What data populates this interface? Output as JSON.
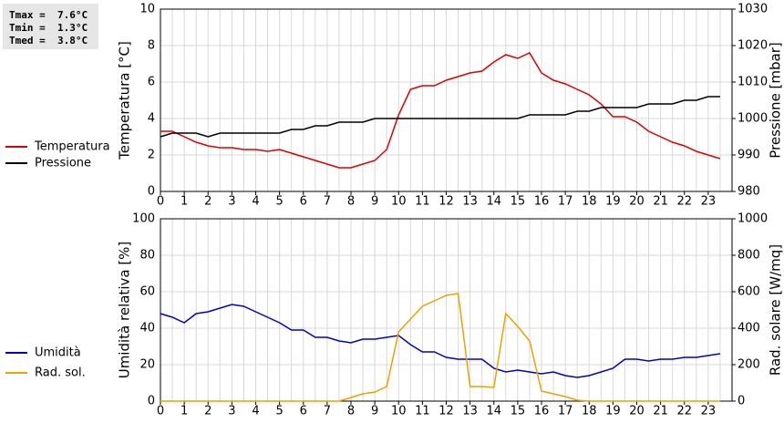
{
  "chart_data": [
    {
      "type": "line",
      "annotations": [
        "Tmax =  7.6°C",
        "Tmin =  1.3°C",
        "Tmed =  3.8°C"
      ],
      "ylabel": "Temperatura [°C]",
      "y2label": "Pressione [mbar]",
      "x": [
        0,
        0.5,
        1,
        1.5,
        2,
        2.5,
        3,
        3.5,
        4,
        4.5,
        5,
        5.5,
        6,
        6.5,
        7,
        7.5,
        8,
        8.5,
        9,
        9.5,
        10,
        10.5,
        11,
        11.5,
        12,
        12.5,
        13,
        13.5,
        14,
        14.5,
        15,
        15.5,
        16,
        16.5,
        17,
        17.5,
        18,
        18.5,
        19,
        19.5,
        20,
        20.5,
        21,
        21.5,
        22,
        22.5,
        23,
        23.5
      ],
      "xlim": [
        0,
        24
      ],
      "xticks": [
        0,
        1,
        2,
        3,
        4,
        5,
        6,
        7,
        8,
        9,
        10,
        11,
        12,
        13,
        14,
        15,
        16,
        17,
        18,
        19,
        20,
        21,
        22,
        23
      ],
      "ylim": [
        0,
        10
      ],
      "yticks": [
        0,
        2,
        4,
        6,
        8,
        10
      ],
      "y2lim": [
        980,
        1030
      ],
      "y2ticks": [
        980,
        990,
        1000,
        1010,
        1020,
        1030
      ],
      "grid": true,
      "series": [
        {
          "name": "Temperatura",
          "color": "#dd0000",
          "values": [
            3.3,
            3.3,
            3.0,
            2.7,
            2.5,
            2.4,
            2.4,
            2.3,
            2.3,
            2.2,
            2.3,
            2.1,
            1.9,
            1.7,
            1.5,
            1.3,
            1.3,
            1.5,
            1.7,
            2.3,
            4.2,
            5.6,
            5.8,
            5.8,
            6.1,
            6.3,
            6.5,
            6.6,
            7.1,
            7.5,
            7.3,
            7.6,
            6.5,
            6.1,
            5.9,
            5.6,
            5.3,
            4.8,
            4.1,
            4.1,
            3.8,
            3.3,
            3.0,
            2.7,
            2.5,
            2.2,
            2.0,
            1.8
          ]
        },
        {
          "name": "Pressione",
          "color": "#000000",
          "axis": "y2",
          "values": [
            995,
            996,
            996,
            996,
            995,
            996,
            996,
            996,
            996,
            996,
            996,
            997,
            997,
            998,
            998,
            999,
            999,
            999,
            1000,
            1000,
            1000,
            1000,
            1000,
            1000,
            1000,
            1000,
            1000,
            1000,
            1000,
            1000,
            1000,
            1001,
            1001,
            1001,
            1001,
            1002,
            1002,
            1003,
            1003,
            1003,
            1003,
            1004,
            1004,
            1004,
            1005,
            1005,
            1006,
            1006
          ]
        }
      ]
    },
    {
      "type": "line",
      "ylabel": "Umidità relativa [%]",
      "y2label": "Rad. solare [W/mq]",
      "x": [
        0,
        0.5,
        1,
        1.5,
        2,
        2.5,
        3,
        3.5,
        4,
        4.5,
        5,
        5.5,
        6,
        6.5,
        7,
        7.5,
        8,
        8.5,
        9,
        9.5,
        10,
        10.5,
        11,
        11.5,
        12,
        12.5,
        13,
        13.5,
        14,
        14.5,
        15,
        15.5,
        16,
        16.5,
        17,
        17.5,
        18,
        18.5,
        19,
        19.5,
        20,
        20.5,
        21,
        21.5,
        22,
        22.5,
        23,
        23.5
      ],
      "xlim": [
        0,
        24
      ],
      "xticks": [
        0,
        1,
        2,
        3,
        4,
        5,
        6,
        7,
        8,
        9,
        10,
        11,
        12,
        13,
        14,
        15,
        16,
        17,
        18,
        19,
        20,
        21,
        22,
        23
      ],
      "ylim": [
        0,
        100
      ],
      "yticks": [
        0,
        20,
        40,
        60,
        80,
        100
      ],
      "y2lim": [
        0,
        1000
      ],
      "y2ticks": [
        0,
        200,
        400,
        600,
        800,
        1000
      ],
      "grid": true,
      "series": [
        {
          "name": "Umidità",
          "color": "#0000cc",
          "values": [
            48,
            46,
            43,
            48,
            49,
            51,
            53,
            52,
            49,
            46,
            43,
            39,
            39,
            35,
            35,
            33,
            32,
            34,
            34,
            35,
            36,
            31,
            27,
            27,
            24,
            23,
            23,
            23,
            18,
            16,
            17,
            16,
            15,
            16,
            14,
            13,
            14,
            16,
            18,
            23,
            23,
            22,
            23,
            23,
            24,
            24,
            25,
            26
          ]
        },
        {
          "name": "Rad. sol.",
          "color": "#f0a000",
          "axis": "y2",
          "values": [
            0,
            0,
            0,
            0,
            0,
            0,
            0,
            0,
            0,
            0,
            0,
            0,
            0,
            0,
            0,
            0,
            20,
            40,
            50,
            80,
            380,
            450,
            520,
            550,
            580,
            590,
            80,
            80,
            75,
            480,
            410,
            330,
            55,
            40,
            25,
            5,
            0,
            0,
            0,
            0,
            0,
            0,
            0,
            0,
            0,
            0,
            0,
            0
          ]
        }
      ]
    }
  ]
}
